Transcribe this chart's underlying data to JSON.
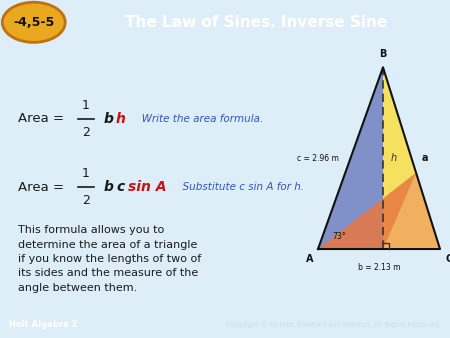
{
  "title": "The Law of Sines. Inverse Sine",
  "tab_label": "-4,5-5",
  "header_bg": "#2b6bb5",
  "header_tab_bg": "#e8a820",
  "header_tab_border": "#c07010",
  "header_text_color": "#ffffff",
  "body_bg": "#ddeef8",
  "footer_bg": "#2b6bb5",
  "footer_left": "Holt Algebra 2",
  "footer_right": "Copyright © by Holt, Rinehart and Winston. All Rights Reserved.",
  "text_color_black": "#1a1a1a",
  "text_color_red": "#cc1111",
  "note_color": "#3355bb",
  "body_text": "This formula allows you to\ndetermine the area of a triangle\nif you know the lengths of two of\nits sides and the measure of the\nangle between them.",
  "color_yellow": "#f5e060",
  "color_orange_top": "#f0b060",
  "color_orange_mid": "#e87840",
  "color_blue": "#8090c8",
  "color_lavender": "#9898cc",
  "tri_outline": "#111111"
}
